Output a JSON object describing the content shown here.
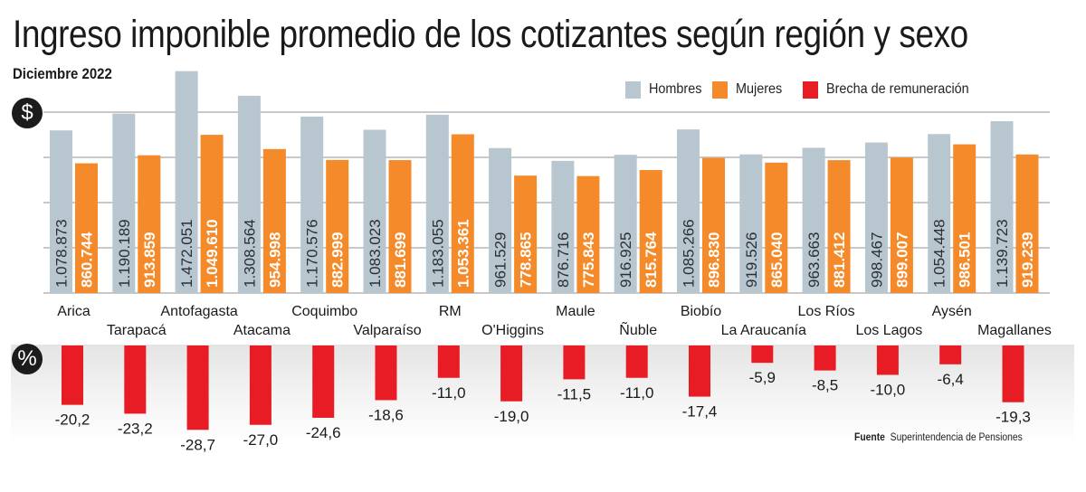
{
  "header": {
    "title": "Ingreso imponible promedio de los cotizantes según región y sexo",
    "subtitle": "Diciembre 2022"
  },
  "legend": [
    {
      "label": "Hombres",
      "color": "#b7c6cf"
    },
    {
      "label": "Mujeres",
      "color": "#f58a2a"
    },
    {
      "label": "Brecha de remuneración",
      "color": "#e81c24"
    }
  ],
  "icons": {
    "money": "$",
    "percent": "%"
  },
  "source": {
    "label": "Fuente",
    "text": "Superintendencia de Pensiones"
  },
  "chart_data": [
    {
      "type": "bar",
      "title": "Ingreso imponible promedio de los cotizantes según región y sexo",
      "subtitle": "Diciembre 2022",
      "xlabel": "",
      "ylabel": "$",
      "ylim": [
        0,
        1200000
      ],
      "grid": true,
      "legend_position": "top-right",
      "categories": [
        "Arica",
        "Tarapacá",
        "Antofagasta",
        "Atacama",
        "Coquimbo",
        "Valparaíso",
        "RM",
        "O'Higgins",
        "Maule",
        "Ñuble",
        "Biobío",
        "La Araucanía",
        "Los Ríos",
        "Los Lagos",
        "Aysén",
        "Magallanes"
      ],
      "series": [
        {
          "name": "Hombres",
          "color": "#b7c6cf",
          "values": [
            1078873,
            1190189,
            1472051,
            1308564,
            1170576,
            1083023,
            1183055,
            961529,
            876716,
            916925,
            1085266,
            919526,
            963663,
            998467,
            1054448,
            1139723
          ],
          "labels": [
            "1.078.873",
            "1.190.189",
            "1.472.051",
            "1.308.564",
            "1.170.576",
            "1.083.023",
            "1.183.055",
            "961.529",
            "876.716",
            "916.925",
            "1.085.266",
            "919.526",
            "963.663",
            "998.467",
            "1.054.448",
            "1.139.723"
          ]
        },
        {
          "name": "Mujeres",
          "color": "#f58a2a",
          "values": [
            860744,
            913859,
            1049610,
            954998,
            882999,
            881699,
            1053361,
            778865,
            775843,
            815764,
            896830,
            865040,
            881412,
            899007,
            986501,
            919239
          ],
          "labels": [
            "860.744",
            "913.859",
            "1.049.610",
            "954.998",
            "882.999",
            "881.699",
            "1.053.361",
            "778.865",
            "775.843",
            "815.764",
            "896.830",
            "865.040",
            "881.412",
            "899.007",
            "986.501",
            "919.239"
          ]
        }
      ]
    },
    {
      "type": "bar",
      "title": "Brecha de remuneración",
      "ylabel": "%",
      "ylim": [
        -30,
        0
      ],
      "grid": false,
      "categories": [
        "Arica",
        "Tarapacá",
        "Antofagasta",
        "Atacama",
        "Coquimbo",
        "Valparaíso",
        "RM",
        "O'Higgins",
        "Maule",
        "Ñuble",
        "Biobío",
        "La Araucanía",
        "Los Ríos",
        "Los Lagos",
        "Aysén",
        "Magallanes"
      ],
      "series": [
        {
          "name": "Brecha de remuneración",
          "color": "#e81c24",
          "values": [
            -20.2,
            -23.2,
            -28.7,
            -27.0,
            -24.6,
            -18.6,
            -11.0,
            -19.0,
            -11.5,
            -11.0,
            -17.4,
            -5.9,
            -8.5,
            -10.0,
            -6.4,
            -19.3
          ],
          "labels": [
            "-20,2",
            "-23,2",
            "-28,7",
            "-27,0",
            "-24,6",
            "-18,6",
            "-11,0",
            "-19,0",
            "-11,5",
            "-11,0",
            "-17,4",
            "-5,9",
            "-8,5",
            "-10,0",
            "-6,4",
            "-19,3"
          ]
        }
      ]
    }
  ]
}
